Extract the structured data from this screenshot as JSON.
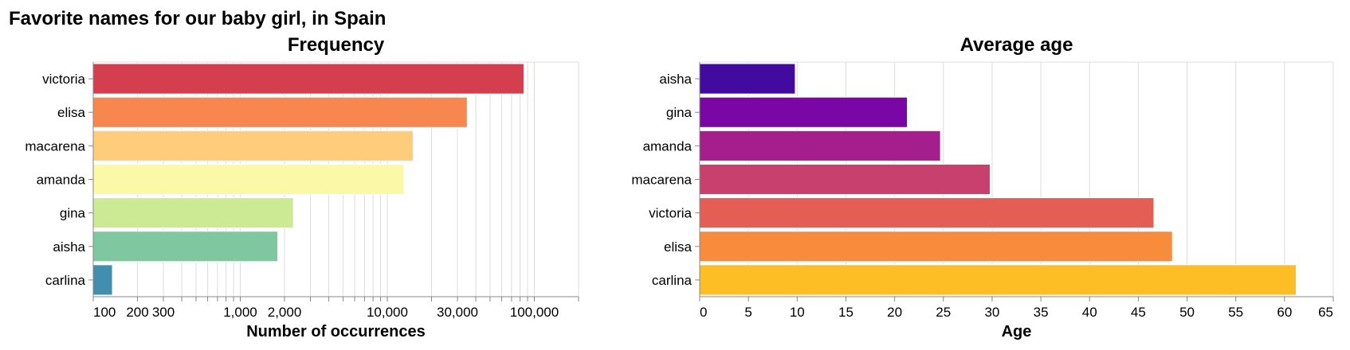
{
  "title": "Favorite names for our baby girl, in Spain",
  "chart_data": [
    {
      "type": "bar",
      "orientation": "horizontal",
      "title": "Frequency",
      "xlabel": "Number of occurrences",
      "ylabel": "",
      "x_scale": "log",
      "xlim": [
        100,
        200000
      ],
      "grid": true,
      "x_tick_labels": [
        {
          "value": 100,
          "label": "100"
        },
        {
          "value": 200,
          "label": "200"
        },
        {
          "value": 300,
          "label": "300"
        },
        {
          "value": 1000,
          "label": "1,000"
        },
        {
          "value": 2000,
          "label": "2,000"
        },
        {
          "value": 10000,
          "label": "10,000"
        },
        {
          "value": 30000,
          "label": "30,000"
        },
        {
          "value": 100000,
          "label": "100,000"
        }
      ],
      "categories": [
        "victoria",
        "elisa",
        "macarena",
        "amanda",
        "gina",
        "aisha",
        "carlina"
      ],
      "values": [
        85000,
        35000,
        15000,
        13000,
        2300,
        1800,
        135
      ],
      "colors": [
        "#d53e4f",
        "#f8864f",
        "#fecd7c",
        "#fbf8a7",
        "#cbea93",
        "#7fc79f",
        "#428eae"
      ]
    },
    {
      "type": "bar",
      "orientation": "horizontal",
      "title": "Average age",
      "xlabel": "Age",
      "ylabel": "",
      "xlim": [
        0,
        65
      ],
      "grid": true,
      "x_tick_labels": [
        {
          "value": 0,
          "label": "0"
        },
        {
          "value": 5,
          "label": "5"
        },
        {
          "value": 10,
          "label": "10"
        },
        {
          "value": 15,
          "label": "15"
        },
        {
          "value": 20,
          "label": "20"
        },
        {
          "value": 25,
          "label": "25"
        },
        {
          "value": 30,
          "label": "30"
        },
        {
          "value": 35,
          "label": "35"
        },
        {
          "value": 40,
          "label": "40"
        },
        {
          "value": 45,
          "label": "45"
        },
        {
          "value": 50,
          "label": "50"
        },
        {
          "value": 55,
          "label": "55"
        },
        {
          "value": 60,
          "label": "60"
        },
        {
          "value": 65,
          "label": "65"
        }
      ],
      "categories": [
        "aisha",
        "gina",
        "amanda",
        "macarena",
        "victoria",
        "elisa",
        "carlina"
      ],
      "values": [
        9.8,
        21.3,
        24.7,
        29.8,
        46.6,
        48.5,
        61.2
      ],
      "colors": [
        "#420a9f",
        "#7a07a5",
        "#a41e8e",
        "#c8406d",
        "#e45e56",
        "#f78d3c",
        "#fdbe25"
      ]
    }
  ]
}
